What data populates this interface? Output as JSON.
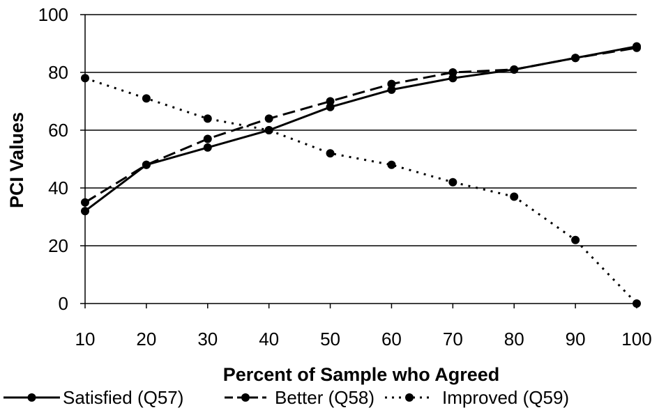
{
  "chart_data": {
    "type": "line",
    "title": "",
    "xlabel": "Percent of Sample who Agreed",
    "ylabel": "PCI Values",
    "x": [
      10,
      20,
      30,
      40,
      50,
      60,
      70,
      80,
      90,
      100
    ],
    "xlim": [
      10,
      100
    ],
    "ylim": [
      0,
      100
    ],
    "yticks": [
      0,
      20,
      40,
      60,
      80,
      100
    ],
    "xticks": [
      10,
      20,
      30,
      40,
      50,
      60,
      70,
      80,
      90,
      100
    ],
    "grid": "horizontal",
    "legend_position": "bottom",
    "series": [
      {
        "name": "Satisfied (Q57)",
        "style": "solid",
        "values": [
          32,
          48,
          54,
          60,
          68,
          74,
          78,
          81,
          85,
          89
        ]
      },
      {
        "name": "Better (Q58)",
        "style": "dashed",
        "values": [
          35,
          48,
          57,
          64,
          70,
          76,
          80,
          81,
          85,
          88.5
        ]
      },
      {
        "name": "Improved (Q59)",
        "style": "dotted",
        "values": [
          78,
          71,
          64,
          60,
          52,
          48,
          42,
          37,
          22,
          0
        ]
      }
    ]
  }
}
